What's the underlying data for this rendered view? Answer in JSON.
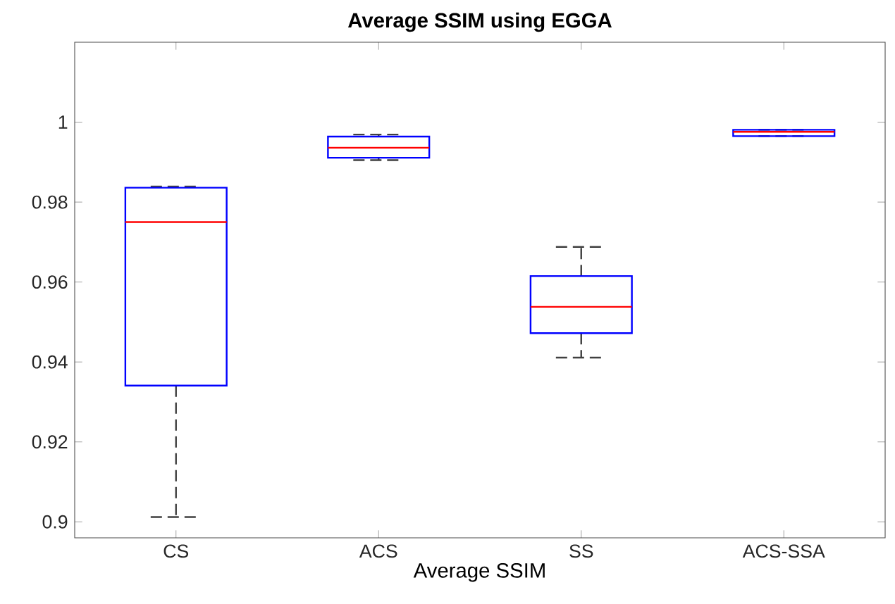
{
  "chart_data": {
    "type": "box",
    "title": "Average SSIM using EGGA",
    "xlabel": "Average SSIM",
    "categories": [
      "CS",
      "ACS",
      "SS",
      "ACS-SSA"
    ],
    "ylim": [
      0.896,
      1.02
    ],
    "yticks": [
      0.9,
      0.92,
      0.94,
      0.96,
      0.98,
      1
    ],
    "series": [
      {
        "color": "#0000ff",
        "boxes": [
          {
            "low": 0.9012,
            "q1": 0.9341,
            "median": 0.975,
            "q3": 0.9836,
            "high": 0.9839
          },
          {
            "low": 0.9905,
            "q1": 0.9911,
            "median": 0.9936,
            "q3": 0.9964,
            "high": 0.9969
          },
          {
            "low": 0.9411,
            "q1": 0.9472,
            "median": 0.9538,
            "q3": 0.9615,
            "high": 0.9688
          },
          {
            "low": 0.9965,
            "q1": 0.9965,
            "median": 0.9976,
            "q3": 0.9981,
            "high": 0.9981
          }
        ]
      }
    ]
  }
}
